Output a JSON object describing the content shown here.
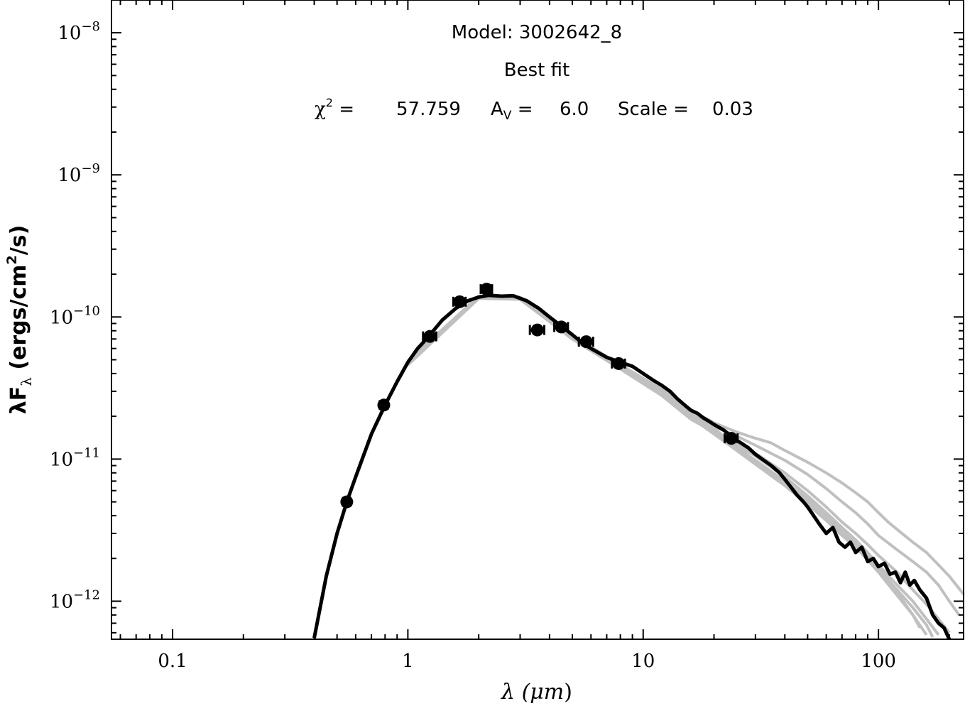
{
  "chart_data": {
    "type": "line",
    "x_scale": "log",
    "y_scale": "log",
    "xlim": [
      0.055,
      230
    ],
    "ylim": [
      5.4e-13,
      1.7e-08
    ],
    "xlabel": {
      "prefix": "λ (",
      "unit": "μm",
      "suffix": ")"
    },
    "ylabel": {
      "lambda": "λF",
      "sub": "λ",
      "open": " (ergs/cm",
      "sup": "2",
      "close": "/s)"
    },
    "x_ticks": [
      {
        "value": 0.1,
        "label": "0.1"
      },
      {
        "value": 1,
        "label": "1"
      },
      {
        "value": 10,
        "label": "10"
      },
      {
        "value": 100,
        "label": "100"
      }
    ],
    "y_ticks": [
      {
        "value": 1e-12,
        "base": "10",
        "exp": "−12"
      },
      {
        "value": 1e-11,
        "base": "10",
        "exp": "−11"
      },
      {
        "value": 1e-10,
        "base": "10",
        "exp": "−10"
      },
      {
        "value": 1e-09,
        "base": "10",
        "exp": "−9"
      },
      {
        "value": 1e-08,
        "base": "10",
        "exp": "−8"
      }
    ],
    "annotations": {
      "model_line": "Model: 3002642_8",
      "fit_line": "Best fit",
      "chi_symbol": "χ",
      "chi_sup": "2",
      "chi_eq": " =",
      "chi_value": "57.759",
      "av_symbol": "A",
      "av_sub": "V",
      "av_eq": " =",
      "av_value": "6.0",
      "scale_eq": "Scale =",
      "scale_value": "0.03"
    },
    "best_fit": {
      "x": [
        0.4,
        0.45,
        0.5,
        0.55,
        0.6,
        0.7,
        0.8,
        0.9,
        1.0,
        1.1,
        1.2,
        1.4,
        1.6,
        1.8,
        2.0,
        2.2,
        2.5,
        2.8,
        3.2,
        3.6,
        4.0,
        4.5,
        5.0,
        5.5,
        6.0,
        7.0,
        8.0,
        9.0,
        10,
        11,
        12,
        13,
        14,
        15,
        16,
        17,
        18,
        19,
        20,
        22,
        24,
        26,
        28,
        30,
        32,
        35,
        38,
        40,
        42,
        45,
        48,
        50,
        53,
        56,
        60,
        64,
        68,
        72,
        76,
        80,
        85,
        90,
        95,
        100,
        106,
        112,
        118,
        124,
        130,
        136,
        142,
        150,
        160,
        170,
        180,
        190,
        200
      ],
      "y": [
        5.5e-13,
        1.5e-12,
        3e-12,
        5e-12,
        7.5e-12,
        1.5e-11,
        2.4e-11,
        3.5e-11,
        4.8e-11,
        6e-11,
        7e-11,
        9.5e-11,
        1.15e-10,
        1.3e-10,
        1.38e-10,
        1.42e-10,
        1.4e-10,
        1.41e-10,
        1.3e-10,
        1.15e-10,
        1e-10,
        8.6e-11,
        7.5e-11,
        6.6e-11,
        6e-11,
        5.2e-11,
        4.8e-11,
        4.5e-11,
        4e-11,
        3.6e-11,
        3.3e-11,
        3e-11,
        2.65e-11,
        2.4e-11,
        2.2e-11,
        2.1e-11,
        1.95e-11,
        1.85e-11,
        1.75e-11,
        1.6e-11,
        1.42e-11,
        1.3e-11,
        1.2e-11,
        1.08e-11,
        1e-11,
        9e-12,
        8e-12,
        7.2e-12,
        6.5e-12,
        5.6e-12,
        5e-12,
        4.6e-12,
        4e-12,
        3.5e-12,
        3e-12,
        3.3e-12,
        2.6e-12,
        2.4e-12,
        2.6e-12,
        2.2e-12,
        2.4e-12,
        1.9e-12,
        2e-12,
        1.75e-12,
        1.85e-12,
        1.55e-12,
        1.6e-12,
        1.35e-12,
        1.6e-12,
        1.3e-12,
        1.4e-12,
        1.2e-12,
        1.05e-12,
        8e-13,
        7e-13,
        6.5e-13,
        5.4e-13
      ]
    },
    "other_fits": [
      {
        "x": [
          1.0,
          2.0,
          3.0,
          5.0,
          8.0,
          12,
          16,
          20,
          25,
          30,
          35,
          40,
          50,
          60,
          70,
          80,
          90,
          100,
          110,
          120,
          140,
          160,
          180,
          200,
          230
        ],
        "y": [
          4.8e-11,
          1.38e-10,
          1.38e-10,
          7.4e-11,
          4.6e-11,
          3.1e-11,
          2.2e-11,
          1.8e-11,
          1.55e-11,
          1.4e-11,
          1.3e-11,
          1.15e-11,
          9.5e-12,
          8e-12,
          6.8e-12,
          5.8e-12,
          5e-12,
          4.2e-12,
          3.6e-12,
          3.2e-12,
          2.6e-12,
          2.2e-12,
          1.8e-12,
          1.5e-12,
          1.12e-12
        ]
      },
      {
        "x": [
          1.0,
          2.0,
          3.0,
          5.0,
          8.0,
          12,
          16,
          20,
          25,
          30,
          40,
          50,
          60,
          70,
          80,
          90,
          100,
          120,
          140,
          160,
          180,
          200,
          220
        ],
        "y": [
          4.6e-11,
          1.35e-10,
          1.36e-10,
          7.2e-11,
          4.4e-11,
          2.9e-11,
          2.1e-11,
          1.7e-11,
          1.45e-11,
          1.25e-11,
          9.8e-12,
          7.8e-12,
          6.2e-12,
          5e-12,
          4.2e-12,
          3.5e-12,
          2.9e-12,
          2.3e-12,
          1.9e-12,
          1.6e-12,
          1.3e-12,
          1e-12,
          8e-13
        ]
      },
      {
        "x": [
          1.0,
          2.0,
          3.0,
          5.0,
          8.0,
          12,
          16,
          20,
          25,
          30,
          40,
          50,
          60,
          70,
          80,
          90,
          100,
          120,
          140,
          160,
          180,
          200
        ],
        "y": [
          4.7e-11,
          1.36e-10,
          1.34e-10,
          7e-11,
          4.3e-11,
          2.8e-11,
          1.9e-11,
          1.55e-11,
          1.3e-11,
          1.1e-11,
          8e-12,
          6e-12,
          4.6e-12,
          3.6e-12,
          3e-12,
          2.5e-12,
          2.1e-12,
          1.6e-12,
          1.2e-12,
          9.5e-13,
          7.5e-13,
          6e-13
        ]
      },
      {
        "x": [
          1.0,
          2.0,
          3.0,
          5.0,
          8.0,
          12,
          16,
          20,
          25,
          30,
          40,
          50,
          60,
          70,
          80,
          90,
          100,
          120,
          140,
          160,
          180
        ],
        "y": [
          4.7e-11,
          1.37e-10,
          1.35e-10,
          7.1e-11,
          4.5e-11,
          2.9e-11,
          2e-11,
          1.6e-11,
          1.25e-11,
          1.05e-11,
          7.5e-12,
          5.5e-12,
          4.2e-12,
          3.3e-12,
          2.7e-12,
          2.2e-12,
          1.8e-12,
          1.3e-12,
          1e-12,
          7.5e-13,
          5.8e-13
        ]
      },
      {
        "x": [
          1.0,
          2.0,
          3.0,
          5.0,
          8.0,
          12,
          16,
          20,
          25,
          30,
          40,
          50,
          60,
          70,
          80,
          90,
          100,
          120,
          140,
          160,
          170
        ],
        "y": [
          4.9e-11,
          1.4e-10,
          1.37e-10,
          7.3e-11,
          4.6e-11,
          3e-11,
          2.1e-11,
          1.65e-11,
          1.2e-11,
          9.8e-12,
          7e-12,
          5.2e-12,
          4e-12,
          3.2e-12,
          2.6e-12,
          2.1e-12,
          1.7e-12,
          1.2e-12,
          9e-13,
          6.8e-13,
          5.6e-13
        ]
      },
      {
        "x": [
          1.0,
          2.0,
          3.0,
          5.0,
          8.0,
          12,
          16,
          20,
          25,
          30,
          40,
          50,
          60,
          70,
          80,
          90,
          100,
          120,
          140,
          160
        ],
        "y": [
          4.6e-11,
          1.35e-10,
          1.33e-10,
          7e-11,
          4.4e-11,
          2.8e-11,
          1.95e-11,
          1.5e-11,
          1.15e-11,
          9.2e-12,
          6.5e-12,
          4.8e-12,
          3.7e-12,
          2.9e-12,
          2.4e-12,
          1.95e-12,
          1.6e-12,
          1.1e-12,
          8e-13,
          5.8e-13
        ]
      },
      {
        "x": [
          1.0,
          2.0,
          3.0,
          5.0,
          8.0,
          12,
          16,
          20,
          25,
          30,
          40,
          50,
          60,
          70,
          80,
          90,
          100,
          120,
          140,
          150
        ],
        "y": [
          4.8e-11,
          1.39e-10,
          1.36e-10,
          7.2e-11,
          4.5e-11,
          2.9e-11,
          2.05e-11,
          1.55e-11,
          1.2e-11,
          9.5e-12,
          6.8e-12,
          5e-12,
          3.9e-12,
          3e-12,
          2.5e-12,
          2.05e-12,
          1.7e-12,
          1.15e-12,
          8e-13,
          6.5e-13
        ]
      }
    ],
    "data_points": [
      {
        "x": 0.55,
        "y": 5e-12,
        "xerr": 0.02
      },
      {
        "x": 0.79,
        "y": 2.4e-11,
        "xerr": 0.03
      },
      {
        "x": 1.24,
        "y": 7.3e-11,
        "xerr": 0.08
      },
      {
        "x": 1.66,
        "y": 1.28e-10,
        "xerr": 0.1
      },
      {
        "x": 2.16,
        "y": 1.57e-10,
        "xerr": 0.12
      },
      {
        "x": 3.55,
        "y": 8.1e-11,
        "xerr": 0.25
      },
      {
        "x": 4.49,
        "y": 8.5e-11,
        "xerr": 0.3
      },
      {
        "x": 5.73,
        "y": 6.7e-11,
        "xerr": 0.4
      },
      {
        "x": 7.87,
        "y": 4.7e-11,
        "xerr": 0.5
      },
      {
        "x": 23.7,
        "y": 1.4e-11,
        "xerr": 1.5
      }
    ],
    "colors": {
      "best_fit": "#000000",
      "other_fits": "#c0c0c0",
      "points": "#000000"
    }
  }
}
